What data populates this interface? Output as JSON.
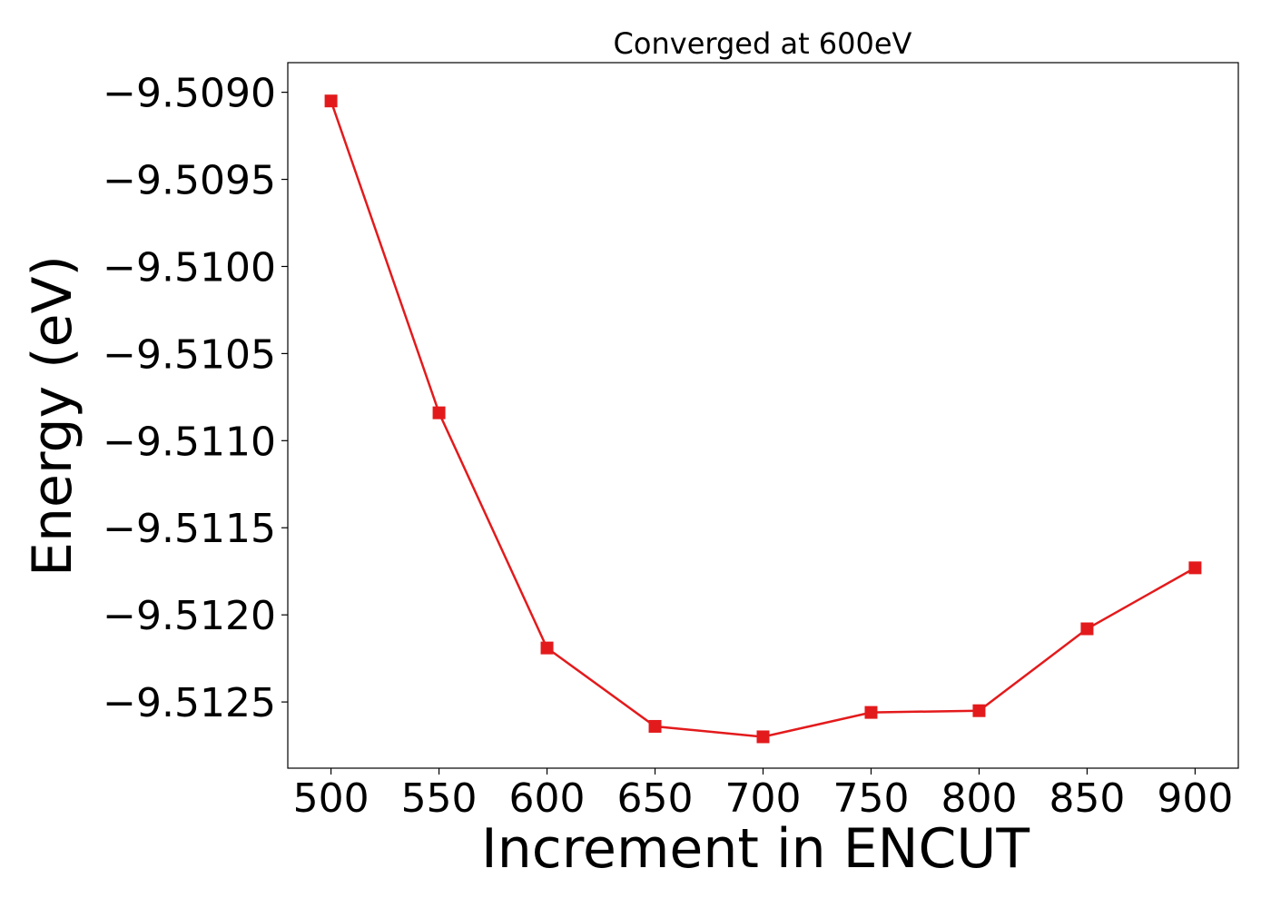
{
  "chart_data": {
    "type": "line",
    "title": "Converged at 600eV",
    "xlabel": "Increment in ENCUT",
    "ylabel": "Energy (eV)",
    "x": [
      500,
      550,
      600,
      650,
      700,
      750,
      800,
      850,
      900
    ],
    "xticks": [
      500,
      550,
      600,
      650,
      700,
      750,
      800,
      850,
      900
    ],
    "xtick_labels": [
      "500",
      "550",
      "600",
      "650",
      "700",
      "750",
      "800",
      "850",
      "900"
    ],
    "yticks": [
      -9.509,
      -9.5095,
      -9.51,
      -9.5105,
      -9.511,
      -9.5115,
      -9.512,
      -9.5125
    ],
    "ytick_labels": [
      "−9.5090",
      "−9.5095",
      "−9.5100",
      "−9.5105",
      "−9.5110",
      "−9.5115",
      "−9.5120",
      "−9.5125"
    ],
    "xlim": [
      480,
      920
    ],
    "ylim": [
      -9.51288,
      -9.50883
    ],
    "series": [
      {
        "values": [
          -9.50905,
          -9.51084,
          -9.51219,
          -9.51264,
          -9.5127,
          -9.51256,
          -9.51255,
          -9.51208,
          -9.51173
        ],
        "color": "#e31a1c",
        "marker": "square"
      }
    ],
    "grid": false,
    "legend": "none"
  }
}
